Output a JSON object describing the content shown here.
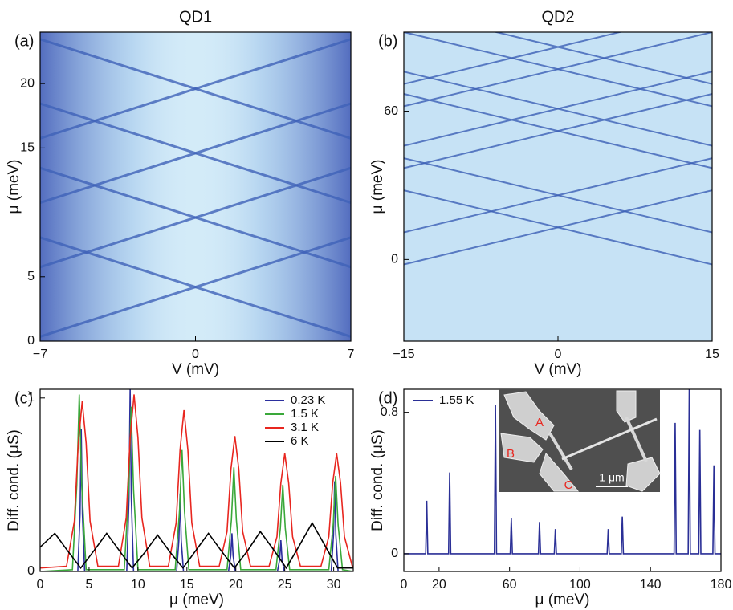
{
  "chart_data": [
    {
      "type": "heatmap",
      "panel_label": "(a)",
      "title": "QD1",
      "x_label": "V (mV)",
      "y_label": "μ (meV)",
      "xlim": [
        -7,
        7
      ],
      "ylim": [
        0,
        24
      ],
      "xticks": [
        {
          "value": -7,
          "label": "−7"
        },
        0,
        7
      ],
      "yticks": [
        0,
        5,
        15,
        20
      ],
      "crossings": [
        4.2,
        9.6,
        14.6,
        19.6
      ]
    },
    {
      "type": "heatmap",
      "panel_label": "(b)",
      "title": "QD2",
      "x_label": "V (mV)",
      "y_label": "μ (meV)",
      "xlim": [
        -15,
        15
      ],
      "ylim": [
        -33,
        92
      ],
      "xticks": [
        {
          "value": -15,
          "label": "−15"
        },
        0,
        15
      ],
      "yticks": [
        0,
        60
      ],
      "crossings": [
        13,
        26,
        52,
        61,
        77,
        86
      ]
    },
    {
      "type": "line",
      "panel_label": "(c)",
      "x_label": "μ (meV)",
      "y_label": "Diff. cond. (μS)",
      "xlim": [
        0,
        32
      ],
      "ylim": [
        0,
        1.05
      ],
      "xticks": [
        0,
        5,
        10,
        15,
        20,
        25,
        30
      ],
      "yticks": [
        0,
        1
      ],
      "legend": "upper right",
      "series": [
        {
          "name": "0.23 K",
          "color": "#2b2f9e",
          "x": [
            0,
            3.85,
            4.08,
            4.2,
            4.32,
            4.55,
            8.85,
            9.08,
            9.2,
            9.32,
            9.55,
            13.95,
            14.18,
            14.3,
            14.42,
            14.65,
            19.25,
            19.48,
            19.6,
            19.72,
            19.95,
            24.25,
            24.48,
            24.6,
            24.72,
            24.95,
            29.75,
            29.98,
            30.1,
            30.22,
            30.45,
            32
          ],
          "values": [
            0,
            0,
            0.33,
            0.82,
            0.33,
            0,
            0,
            0.42,
            1.05,
            0.42,
            0,
            0,
            0.18,
            0.45,
            0.18,
            0,
            0,
            0.09,
            0.22,
            0.09,
            0,
            0,
            0.07,
            0.18,
            0.07,
            0,
            0,
            0.21,
            0.52,
            0.21,
            0,
            0
          ]
        },
        {
          "name": "1.5 K",
          "color": "#3aa83a",
          "x": [
            0,
            3.3,
            3.75,
            4.0,
            4.25,
            4.7,
            8.6,
            9.05,
            9.3,
            9.55,
            10.0,
            13.8,
            14.25,
            14.5,
            14.75,
            15.2,
            19.1,
            19.55,
            19.8,
            20.05,
            20.5,
            24.1,
            24.55,
            24.8,
            25.05,
            25.5,
            29.5,
            29.95,
            30.2,
            30.45,
            30.9,
            32
          ],
          "values": [
            0,
            0.01,
            0.5,
            1.02,
            0.5,
            0.01,
            0.01,
            0.47,
            0.95,
            0.47,
            0.01,
            0.01,
            0.35,
            0.7,
            0.35,
            0.01,
            0.01,
            0.3,
            0.6,
            0.3,
            0.01,
            0.01,
            0.25,
            0.5,
            0.25,
            0.01,
            0.01,
            0.27,
            0.55,
            0.27,
            0.01,
            0
          ]
        },
        {
          "name": "3.1 K",
          "color": "#e8261f",
          "x": [
            0,
            2.7,
            3.5,
            3.9,
            4.3,
            4.7,
            5.1,
            5.9,
            8.0,
            8.8,
            9.2,
            9.6,
            10.0,
            10.4,
            11.2,
            13.1,
            13.9,
            14.3,
            14.7,
            15.1,
            15.5,
            16.3,
            18.3,
            19.1,
            19.5,
            19.9,
            20.3,
            20.7,
            21.5,
            23.4,
            24.2,
            24.6,
            25.0,
            25.4,
            25.8,
            26.6,
            28.7,
            29.5,
            29.9,
            30.3,
            30.7,
            31.1,
            31.9,
            32
          ],
          "values": [
            0.02,
            0.03,
            0.29,
            0.74,
            0.98,
            0.74,
            0.29,
            0.03,
            0.03,
            0.31,
            0.77,
            1.02,
            0.77,
            0.31,
            0.03,
            0.03,
            0.28,
            0.7,
            0.93,
            0.7,
            0.28,
            0.03,
            0.03,
            0.23,
            0.59,
            0.78,
            0.59,
            0.23,
            0.03,
            0.03,
            0.2,
            0.51,
            0.68,
            0.51,
            0.2,
            0.03,
            0.03,
            0.2,
            0.51,
            0.68,
            0.51,
            0.2,
            0.03,
            0.03
          ]
        },
        {
          "name": "6 K",
          "color": "#000000",
          "x": [
            0,
            1.5,
            2.8,
            4.15,
            5.5,
            6.8,
            8.1,
            9.4,
            10.7,
            12.0,
            13.3,
            14.6,
            15.9,
            17.2,
            18.5,
            19.85,
            21.2,
            22.5,
            23.8,
            25.15,
            26.5,
            27.8,
            29.1,
            30.4,
            32
          ],
          "values": [
            0.14,
            0.22,
            0.12,
            0.02,
            0.12,
            0.22,
            0.12,
            0.02,
            0.11,
            0.21,
            0.11,
            0.02,
            0.12,
            0.22,
            0.12,
            0.02,
            0.12,
            0.23,
            0.13,
            0.02,
            0.15,
            0.28,
            0.15,
            0.02,
            0.02
          ]
        }
      ]
    },
    {
      "type": "line",
      "panel_label": "(d)",
      "x_label": "μ (meV)",
      "y_label": "Diff. cond. (μS)",
      "xlim": [
        0,
        180
      ],
      "ylim": [
        -0.1,
        0.93
      ],
      "xticks": [
        0,
        20,
        60,
        100,
        140,
        180
      ],
      "yticks": [
        0,
        0.8
      ],
      "legend": "upper left",
      "series": [
        {
          "name": "1.55 K",
          "color": "#2a2f96",
          "x": [
            0,
            12.4,
            13,
            13.6,
            25.4,
            26,
            26.6,
            51.4,
            52,
            52.6,
            60.4,
            61,
            61.6,
            76.4,
            77,
            77.6,
            85.4,
            86,
            86.6,
            115.4,
            116,
            116.6,
            123.4,
            124,
            124.6,
            153.4,
            154,
            154.6,
            161.4,
            162,
            162.6,
            167.4,
            168,
            168.6,
            175.4,
            176,
            176.6,
            180
          ],
          "values": [
            0,
            0,
            0.3,
            0,
            0,
            0.46,
            0,
            0,
            0.84,
            0,
            0,
            0.2,
            0,
            0,
            0.18,
            0,
            0,
            0.14,
            0,
            0,
            0.14,
            0,
            0,
            0.21,
            0,
            0,
            0.74,
            0,
            0,
            0.93,
            0,
            0,
            0.7,
            0,
            0,
            0.5,
            0,
            0
          ]
        }
      ],
      "inset": {
        "labels": [
          "A",
          "B",
          "C"
        ],
        "scale_bar": "1 μm"
      }
    }
  ]
}
